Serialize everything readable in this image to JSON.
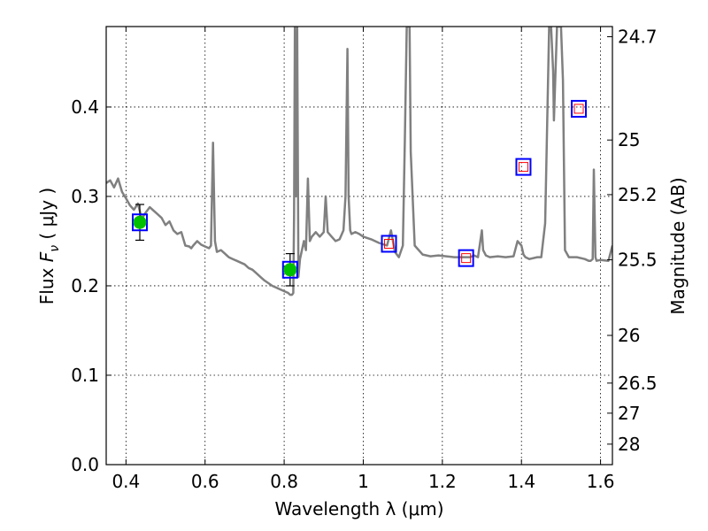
{
  "chart_data": {
    "type": "line",
    "xlabel": "Wavelength  λ (μm)",
    "ylabel": "Flux  F_ν  ( μJy )",
    "ylabel_parts": {
      "pre": "Flux  ",
      "sym": "F",
      "sub": "ν",
      "post": "  ( μJy )"
    },
    "y2label": "Magnitude (AB)",
    "xlim": [
      0.35,
      1.63
    ],
    "ylim": [
      0.0,
      0.49
    ],
    "grid": true,
    "x_ticks": [
      {
        "value": 0.4,
        "label": "0.4"
      },
      {
        "value": 0.6,
        "label": "0.6"
      },
      {
        "value": 0.8,
        "label": "0.8"
      },
      {
        "value": 1.0,
        "label": "1"
      },
      {
        "value": 1.2,
        "label": "1.2"
      },
      {
        "value": 1.4,
        "label": "1.4"
      },
      {
        "value": 1.6,
        "label": "1.6"
      }
    ],
    "y_ticks": [
      {
        "value": 0.0,
        "label": "0.0"
      },
      {
        "value": 0.1,
        "label": "0.1"
      },
      {
        "value": 0.2,
        "label": "0.2"
      },
      {
        "value": 0.3,
        "label": "0.3"
      },
      {
        "value": 0.4,
        "label": "0.4"
      }
    ],
    "y2_ticks": [
      {
        "value": 24.7,
        "label": "24.7"
      },
      {
        "value": 25.0,
        "label": "25"
      },
      {
        "value": 25.2,
        "label": "25.2"
      },
      {
        "value": 25.5,
        "label": "25.5"
      },
      {
        "value": 26.0,
        "label": "26"
      },
      {
        "value": 26.5,
        "label": "26.5"
      },
      {
        "value": 27.0,
        "label": "27"
      },
      {
        "value": 28.0,
        "label": "28"
      }
    ],
    "series": [
      {
        "color": "#808080",
        "x": [
          0.35,
          0.36,
          0.37,
          0.38,
          0.39,
          0.4,
          0.41,
          0.42,
          0.43,
          0.44,
          0.45,
          0.46,
          0.47,
          0.48,
          0.49,
          0.5,
          0.51,
          0.52,
          0.53,
          0.54,
          0.55,
          0.56,
          0.565,
          0.57,
          0.58,
          0.59,
          0.6,
          0.61,
          0.615,
          0.62,
          0.625,
          0.63,
          0.64,
          0.65,
          0.66,
          0.67,
          0.68,
          0.69,
          0.7,
          0.71,
          0.72,
          0.73,
          0.74,
          0.75,
          0.76,
          0.77,
          0.78,
          0.79,
          0.8,
          0.81,
          0.815,
          0.82,
          0.823,
          0.825,
          0.827,
          0.83,
          0.833,
          0.836,
          0.84,
          0.85,
          0.855,
          0.86,
          0.865,
          0.87,
          0.88,
          0.89,
          0.9,
          0.905,
          0.91,
          0.92,
          0.93,
          0.94,
          0.95,
          0.955,
          0.96,
          0.963,
          0.967,
          0.97,
          0.98,
          0.99,
          1.0,
          1.02,
          1.04,
          1.06,
          1.07,
          1.08,
          1.09,
          1.1,
          1.105,
          1.11,
          1.113,
          1.117,
          1.12,
          1.13,
          1.15,
          1.17,
          1.19,
          1.21,
          1.23,
          1.25,
          1.27,
          1.28,
          1.29,
          1.3,
          1.303,
          1.31,
          1.32,
          1.34,
          1.36,
          1.38,
          1.39,
          1.4,
          1.405,
          1.41,
          1.42,
          1.44,
          1.45,
          1.46,
          1.47,
          1.475,
          1.48,
          1.482,
          1.486,
          1.49,
          1.495,
          1.5,
          1.505,
          1.51,
          1.52,
          1.54,
          1.56,
          1.57,
          1.575,
          1.58,
          1.583,
          1.587,
          1.59,
          1.6,
          1.62,
          1.63
        ],
        "values": [
          0.315,
          0.318,
          0.31,
          0.32,
          0.305,
          0.298,
          0.29,
          0.285,
          0.292,
          0.275,
          0.282,
          0.288,
          0.284,
          0.28,
          0.276,
          0.268,
          0.272,
          0.262,
          0.258,
          0.26,
          0.245,
          0.244,
          0.242,
          0.245,
          0.25,
          0.246,
          0.244,
          0.242,
          0.245,
          0.36,
          0.25,
          0.238,
          0.24,
          0.236,
          0.232,
          0.23,
          0.228,
          0.226,
          0.224,
          0.22,
          0.218,
          0.214,
          0.21,
          0.206,
          0.203,
          0.2,
          0.198,
          0.196,
          0.194,
          0.192,
          0.19,
          0.19,
          0.192,
          0.28,
          0.49,
          0.3,
          0.49,
          0.21,
          0.23,
          0.25,
          0.24,
          0.32,
          0.25,
          0.255,
          0.26,
          0.255,
          0.26,
          0.3,
          0.26,
          0.255,
          0.25,
          0.252,
          0.262,
          0.3,
          0.465,
          0.3,
          0.262,
          0.258,
          0.26,
          0.258,
          0.255,
          0.252,
          0.248,
          0.245,
          0.262,
          0.238,
          0.232,
          0.245,
          0.36,
          0.49,
          0.49,
          0.49,
          0.35,
          0.245,
          0.235,
          0.233,
          0.234,
          0.233,
          0.232,
          0.232,
          0.232,
          0.234,
          0.232,
          0.262,
          0.24,
          0.234,
          0.232,
          0.233,
          0.232,
          0.233,
          0.25,
          0.245,
          0.235,
          0.232,
          0.23,
          0.232,
          0.232,
          0.27,
          0.49,
          0.49,
          0.44,
          0.385,
          0.44,
          0.49,
          0.49,
          0.49,
          0.43,
          0.24,
          0.232,
          0.232,
          0.23,
          0.228,
          0.228,
          0.23,
          0.33,
          0.232,
          0.228,
          0.229,
          0.228,
          0.245
        ]
      }
    ],
    "photometry": [
      {
        "x": 0.435,
        "y": 0.271,
        "err": 0.02,
        "marker": "green-circle",
        "model_box": true
      },
      {
        "x": 0.815,
        "y": 0.218,
        "err": 0.018,
        "marker": "green-circle",
        "model_box": true
      },
      {
        "x": 1.065,
        "y": 0.247,
        "err": null,
        "marker": "red-square",
        "model_box": true
      },
      {
        "x": 1.26,
        "y": 0.231,
        "err": null,
        "marker": "red-square",
        "model_box": true
      },
      {
        "x": 1.405,
        "y": 0.333,
        "err": null,
        "marker": "red-square",
        "model_box": true
      },
      {
        "x": 1.545,
        "y": 0.398,
        "err": null,
        "marker": "red-square",
        "model_box": true
      }
    ],
    "colors": {
      "spectrum": "#808080",
      "detection": "#00c000",
      "upper_limit": "#ff0000",
      "model_box": "#0000ff",
      "errorbar": "#000000"
    }
  }
}
